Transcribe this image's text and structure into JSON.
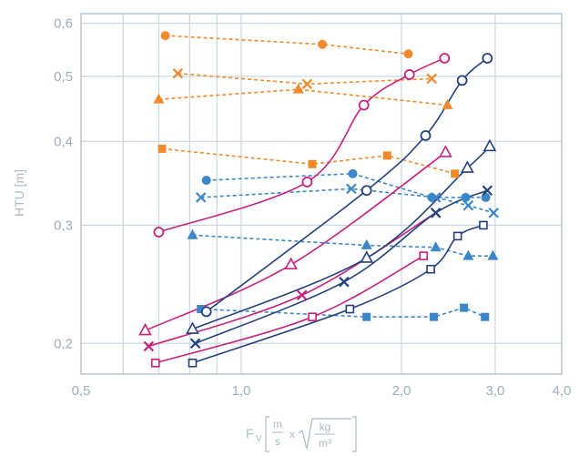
{
  "chart_data": {
    "type": "scatter",
    "title": "",
    "ylabel": "HTU [m]",
    "xlabel": {
      "symbol": "F",
      "subscript": "V",
      "num1": "m",
      "den1": "s",
      "times": "x",
      "num2": "kg",
      "den2": "m³"
    },
    "x_scale": "log",
    "y_scale": "log",
    "xlim": [
      0.5,
      4.0
    ],
    "ylim": [
      0.18,
      0.62
    ],
    "x_ticks": [
      {
        "value": 0.5,
        "label": "0,5"
      },
      {
        "value": 1.0,
        "label": "1,0"
      },
      {
        "value": 2.0,
        "label": "2,0"
      },
      {
        "value": 3.0,
        "label": "3,0"
      },
      {
        "value": 4.0,
        "label": "4,0"
      }
    ],
    "x_minor_ticks": [
      0.6,
      0.7,
      0.8,
      0.9
    ],
    "y_ticks": [
      {
        "value": 0.2,
        "label": "0,2"
      },
      {
        "value": 0.3,
        "label": "0,3"
      },
      {
        "value": 0.4,
        "label": "0,4"
      },
      {
        "value": 0.5,
        "label": "0,5"
      },
      {
        "value": 0.6,
        "label": "0,6"
      }
    ],
    "grid": true,
    "legend": "none",
    "colors": {
      "orange": "#f08a2c",
      "blue": "#3a86c8",
      "magenta": "#c8207e",
      "navy": "#23407e"
    },
    "series": [
      {
        "color": "#f08a2c",
        "marker": "circle-filled",
        "line": "dashed",
        "curve": false,
        "x": [
          0.72,
          1.42,
          2.06
        ],
        "y": [
          0.575,
          0.558,
          0.54
        ]
      },
      {
        "color": "#f08a2c",
        "marker": "x",
        "line": "dashed",
        "curve": false,
        "x": [
          0.76,
          1.33,
          2.28
        ],
        "y": [
          0.505,
          0.487,
          0.496
        ]
      },
      {
        "color": "#f08a2c",
        "marker": "triangle-filled",
        "line": "dashed",
        "curve": false,
        "x": [
          0.7,
          1.28,
          2.44
        ],
        "y": [
          0.462,
          0.478,
          0.453
        ]
      },
      {
        "color": "#f08a2c",
        "marker": "square-filled",
        "line": "dashed",
        "curve": false,
        "x": [
          0.71,
          1.36,
          1.88,
          2.52
        ],
        "y": [
          0.39,
          0.37,
          0.381,
          0.358
        ]
      },
      {
        "color": "#3a86c8",
        "marker": "circle-filled",
        "line": "dashed",
        "curve": false,
        "x": [
          0.86,
          1.62,
          2.28,
          2.64,
          2.88
        ],
        "y": [
          0.35,
          0.358,
          0.33,
          0.33,
          0.33
        ]
      },
      {
        "color": "#3a86c8",
        "marker": "x",
        "line": "dashed",
        "curve": false,
        "x": [
          0.84,
          1.61,
          2.32,
          2.67,
          2.98
        ],
        "y": [
          0.33,
          0.34,
          0.33,
          0.321,
          0.313
        ]
      },
      {
        "color": "#3a86c8",
        "marker": "triangle-filled",
        "line": "dashed",
        "curve": false,
        "x": [
          0.81,
          1.72,
          2.32,
          2.67,
          2.97
        ],
        "y": [
          0.29,
          0.28,
          0.278,
          0.27,
          0.27
        ]
      },
      {
        "color": "#3a86c8",
        "marker": "square-filled",
        "line": "dashed",
        "curve": false,
        "x": [
          0.84,
          1.72,
          2.3,
          2.62,
          2.87
        ],
        "y": [
          0.225,
          0.219,
          0.219,
          0.226,
          0.219
        ]
      },
      {
        "color": "#c8207e",
        "marker": "circle-open",
        "line": "solid",
        "curve": true,
        "x": [
          0.7,
          1.33,
          1.7,
          2.07,
          2.41
        ],
        "y": [
          0.293,
          0.348,
          0.453,
          0.503,
          0.532
        ]
      },
      {
        "color": "#c8207e",
        "marker": "triangle-open",
        "line": "solid",
        "curve": true,
        "x": [
          0.66,
          1.24,
          2.42
        ],
        "y": [
          0.209,
          0.262,
          0.385
        ]
      },
      {
        "color": "#c8207e",
        "marker": "x",
        "line": "solid",
        "curve": true,
        "x": [
          0.67,
          1.3,
          2.32
        ],
        "y": [
          0.198,
          0.236,
          0.313
        ]
      },
      {
        "color": "#c8207e",
        "marker": "square-open",
        "line": "solid",
        "curve": true,
        "x": [
          0.69,
          1.36,
          2.2
        ],
        "y": [
          0.187,
          0.219,
          0.27
        ]
      },
      {
        "color": "#23407e",
        "marker": "circle-open",
        "line": "solid",
        "curve": true,
        "x": [
          0.86,
          1.72,
          2.22,
          2.6,
          2.9
        ],
        "y": [
          0.223,
          0.338,
          0.408,
          0.493,
          0.532
        ]
      },
      {
        "color": "#23407e",
        "marker": "triangle-open",
        "line": "solid",
        "curve": true,
        "x": [
          0.81,
          1.72,
          2.66,
          2.93
        ],
        "y": [
          0.21,
          0.268,
          0.365,
          0.393
        ]
      },
      {
        "color": "#23407e",
        "marker": "x",
        "line": "solid",
        "curve": true,
        "x": [
          0.82,
          1.56,
          2.32,
          2.9
        ],
        "y": [
          0.2,
          0.247,
          0.313,
          0.338
        ]
      },
      {
        "color": "#23407e",
        "marker": "square-open",
        "line": "solid",
        "curve": true,
        "x": [
          0.81,
          1.6,
          2.27,
          2.55,
          2.85
        ],
        "y": [
          0.187,
          0.225,
          0.258,
          0.289,
          0.3
        ]
      }
    ]
  }
}
